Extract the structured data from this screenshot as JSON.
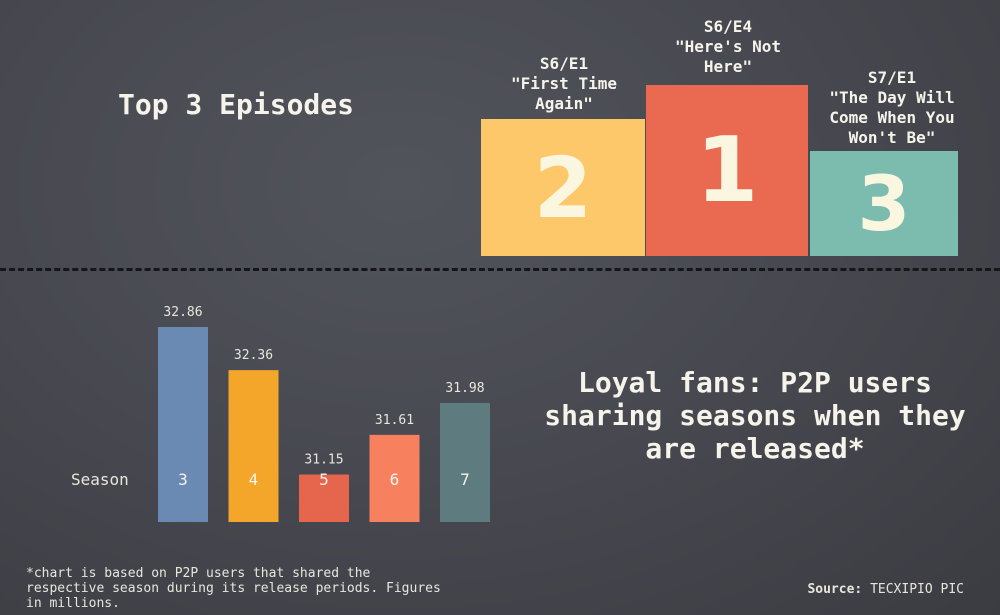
{
  "top_title": "Top 3 Episodes",
  "podium": [
    {
      "rank": "2",
      "code": "S6/E1",
      "title": "\"First Time Again\"",
      "color": "#fdc86a"
    },
    {
      "rank": "1",
      "code": "S6/E4",
      "title": "\"Here's Not Here\"",
      "color": "#e96a50"
    },
    {
      "rank": "3",
      "code": "S7/E1",
      "title": "\"The Day Will Come When You Won't Be\"",
      "color": "#7cbcaf"
    }
  ],
  "chart_data": {
    "type": "bar",
    "xlabel": "Season",
    "categories": [
      "3",
      "4",
      "5",
      "6",
      "7"
    ],
    "values": [
      32.86,
      32.36,
      31.15,
      31.61,
      31.98
    ],
    "value_labels": [
      "32.86",
      "32.36",
      "31.15",
      "31.61",
      "31.98"
    ],
    "colors": [
      "#6b8ab3",
      "#f4a62b",
      "#e5664c",
      "#f7805f",
      "#5e7c7f"
    ],
    "ylim": [
      30.6,
      33.0
    ],
    "grid": false
  },
  "loyal_title": "Loyal fans: P2P users sharing seasons when they are released*",
  "footnote": "*chart is based on P2P users that shared the respective season during its release periods. Figures in millions.",
  "source_label": "Source:",
  "source_value": "TECXIPIO PIC"
}
